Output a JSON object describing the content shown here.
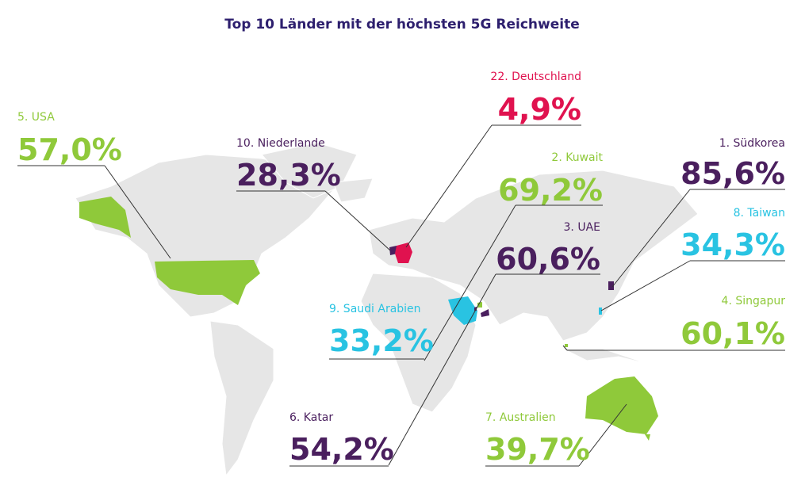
{
  "title": "Top 10 Länder mit der höchsten 5G Reichweite",
  "countries": [
    {
      "label": "5. USA",
      "value": "57,0%",
      "color": "#8fc93a"
    },
    {
      "label": "10. Niederlande",
      "value": "28,3%",
      "color": "#4a1f5e"
    },
    {
      "label": "22. Deutschland",
      "value": "4,9%",
      "color": "#e0124f"
    },
    {
      "label": "2. Kuwait",
      "value": "69,2%",
      "color": "#8fc93a"
    },
    {
      "label": "3. UAE",
      "value": "60,6%",
      "color": "#4a1f5e"
    },
    {
      "label": "1. Südkorea",
      "value": "85,6%",
      "color": "#4a1f5e"
    },
    {
      "label": "8. Taiwan",
      "value": "34,3%",
      "color": "#29c3e2"
    },
    {
      "label": "4. Singapur",
      "value": "60,1%",
      "color": "#8fc93a"
    },
    {
      "label": "9. Saudi Arabien",
      "value": "33,2%",
      "color": "#29c3e2"
    },
    {
      "label": "6. Katar",
      "value": "54,2%",
      "color": "#4a1f5e"
    },
    {
      "label": "7. Australien",
      "value": "39,7%",
      "color": "#8fc93a"
    }
  ]
}
